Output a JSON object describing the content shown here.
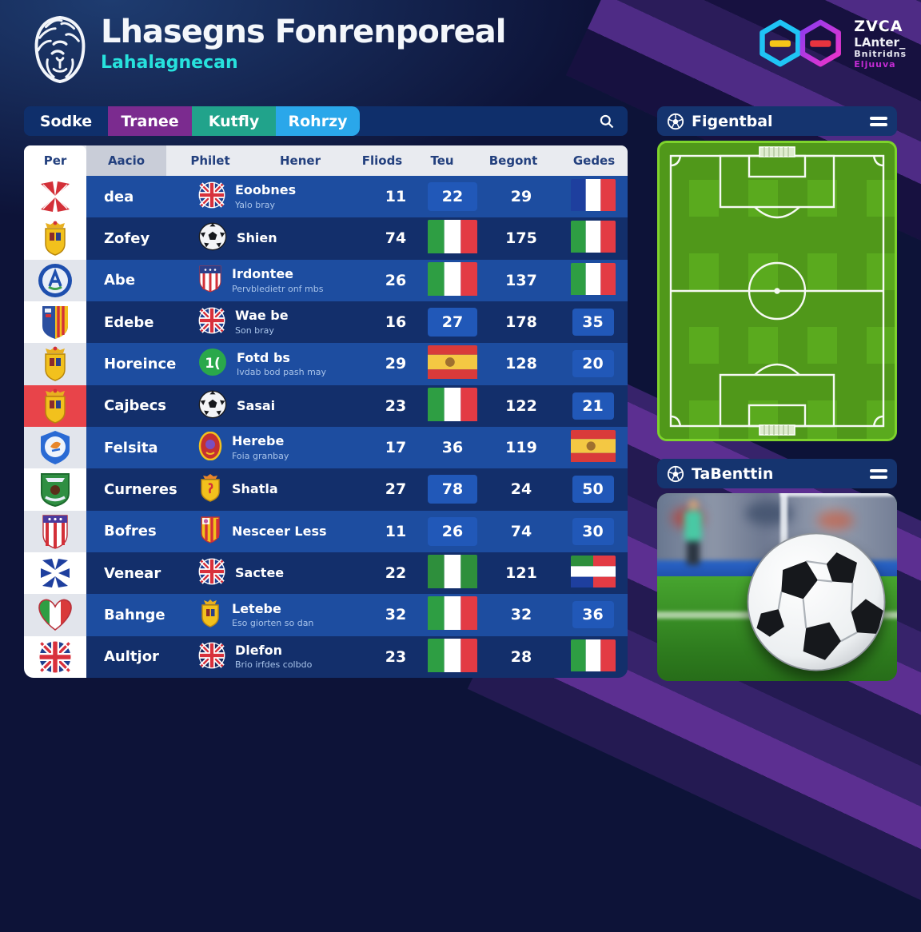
{
  "header": {
    "title": "Lhasegns Fonrenporeal",
    "subtitle": "Lahalagnecan",
    "brand": {
      "line1": "ZVCA",
      "line2": "LAnter_",
      "line3": "Bnitridns",
      "line4": "Eljuuva"
    }
  },
  "tabs": [
    {
      "label": "Sodke",
      "color": "#0f2f6b"
    },
    {
      "label": "Tranee",
      "color": "#7b2b8f"
    },
    {
      "label": "Kutfly",
      "color": "#21a38b"
    },
    {
      "label": "Rohrzy",
      "color": "#2aa7ea"
    }
  ],
  "colors": {
    "row_light": "#1d4da0",
    "row_dark": "#132f6b",
    "badge_blue": "#2158b8",
    "per_red": "#e8444a",
    "subtitle_cyan": "#27e2dd",
    "pitch_green": "#57a71d",
    "pitch_border": "#7ed32c"
  },
  "table": {
    "columns": [
      "Per",
      "Aacio",
      "Philet",
      "Hener",
      "Fliods",
      "Teu",
      "Begont",
      "Gedes"
    ],
    "rows": [
      {
        "crest": "red-cross-flags",
        "per_bg": "#ffffff",
        "name": "dea",
        "philet": {
          "icon": "uk-flag",
          "name": "Eoobnes",
          "sub": "Yalo bray"
        },
        "fliods": "11",
        "teu": {
          "kind": "badge",
          "value": "22"
        },
        "begont": "29",
        "gedes": {
          "kind": "flag",
          "flag": "france"
        }
      },
      {
        "crest": "yellow-crown-shield",
        "per_bg": "#ffffff",
        "name": "Zofey",
        "philet": {
          "icon": "soccer-ball",
          "name": "Shien",
          "sub": ""
        },
        "fliods": "74",
        "teu": {
          "kind": "flag",
          "flag": "italy"
        },
        "begont": "175",
        "gedes": {
          "kind": "flag",
          "flag": "italy"
        }
      },
      {
        "crest": "blue-circle-badge",
        "per_bg": "#e2e5ec",
        "name": "Abe",
        "philet": {
          "icon": "us-shield",
          "name": "Irdontee",
          "sub": "Pervbledietr onf mbs"
        },
        "fliods": "26",
        "teu": {
          "kind": "flag",
          "flag": "italy"
        },
        "begont": "137",
        "gedes": {
          "kind": "flag",
          "flag": "italy"
        }
      },
      {
        "crest": "split-stripes-shield",
        "per_bg": "#ffffff",
        "name": "Edebe",
        "philet": {
          "icon": "uk-flag",
          "name": "Wae be",
          "sub": "Son bray"
        },
        "fliods": "16",
        "teu": {
          "kind": "badge",
          "value": "27"
        },
        "begont": "178",
        "gedes": {
          "kind": "badge",
          "value": "35"
        }
      },
      {
        "crest": "yellow-crown-shield",
        "per_bg": "#e2e5ec",
        "name": "Horeince",
        "philet": {
          "icon": "green-circle",
          "name": "Fotd bs",
          "sub": "Ivdab bod pash may"
        },
        "fliods": "29",
        "teu": {
          "kind": "flag",
          "flag": "spain"
        },
        "begont": "128",
        "gedes": {
          "kind": "badge",
          "value": "20"
        }
      },
      {
        "crest": "yellow-crown-shield",
        "per_bg": "#e8444a",
        "name": "Cajbecs",
        "philet": {
          "icon": "soccer-ball",
          "name": "Sasai",
          "sub": ""
        },
        "fliods": "23",
        "teu": {
          "kind": "flag",
          "flag": "italy"
        },
        "begont": "122",
        "gedes": {
          "kind": "badge",
          "value": "21"
        }
      },
      {
        "crest": "blue-round-badge",
        "per_bg": "#e2e5ec",
        "name": "Felsita",
        "philet": {
          "icon": "red-oval-crest",
          "name": "Herebe",
          "sub": "Foia granbay"
        },
        "fliods": "17",
        "teu": {
          "kind": "plain",
          "value": "36"
        },
        "begont": "119",
        "gedes": {
          "kind": "flag",
          "flag": "spain"
        }
      },
      {
        "crest": "green-shield",
        "per_bg": "#ffffff",
        "name": "Curneres",
        "philet": {
          "icon": "yellow-shield",
          "name": "Shatla",
          "sub": ""
        },
        "fliods": "27",
        "teu": {
          "kind": "badge",
          "value": "78"
        },
        "begont": "24",
        "gedes": {
          "kind": "badge",
          "value": "50"
        }
      },
      {
        "crest": "striped-shield",
        "per_bg": "#e2e5ec",
        "name": "Bofres",
        "philet": {
          "icon": "stripe-shield",
          "name": "Nesceer Less",
          "sub": ""
        },
        "fliods": "11",
        "teu": {
          "kind": "badge",
          "value": "26"
        },
        "begont": "74",
        "gedes": {
          "kind": "badge",
          "value": "30"
        }
      },
      {
        "crest": "blue-asterisk",
        "per_bg": "#ffffff",
        "name": "Venear",
        "philet": {
          "icon": "uk-flag",
          "name": "Sactee",
          "sub": ""
        },
        "fliods": "22",
        "teu": {
          "kind": "flag",
          "flag": "green-white-green"
        },
        "begont": "121",
        "gedes": {
          "kind": "flag",
          "flag": "mixed"
        }
      },
      {
        "crest": "italy-heart",
        "per_bg": "#e2e5ec",
        "name": "Bahnge",
        "philet": {
          "icon": "crown-shield-small",
          "name": "Letebe",
          "sub": "Eso giorten so dan"
        },
        "fliods": "32",
        "teu": {
          "kind": "flag",
          "flag": "italy"
        },
        "begont": "32",
        "gedes": {
          "kind": "badge",
          "value": "36"
        }
      },
      {
        "crest": "uk-flag-square",
        "per_bg": "#ffffff",
        "name": "Aultjor",
        "philet": {
          "icon": "uk-flag-dark",
          "name": "Dlefon",
          "sub": "Brio irfdes colbdo"
        },
        "fliods": "23",
        "teu": {
          "kind": "flag",
          "flag": "italy"
        },
        "begont": "28",
        "gedes": {
          "kind": "flag",
          "flag": "italy"
        }
      }
    ]
  },
  "panels": [
    {
      "title": "Figentbal"
    },
    {
      "title": "TaBenttin"
    }
  ]
}
